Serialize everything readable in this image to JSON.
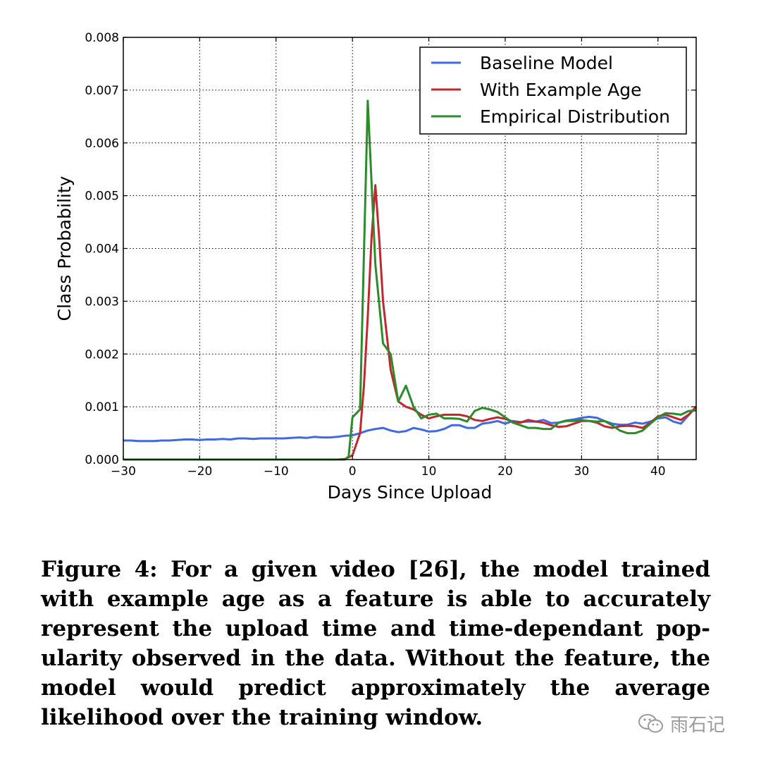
{
  "chart_data": {
    "type": "line",
    "title": "",
    "xlabel": "Days Since Upload",
    "ylabel": "Class Probability",
    "xlim": [
      -30,
      45
    ],
    "ylim": [
      0,
      0.008
    ],
    "x_ticks": [
      -30,
      -20,
      -10,
      0,
      10,
      20,
      30,
      40
    ],
    "x_tick_labels": [
      "−30",
      "−20",
      "−10",
      "0",
      "10",
      "20",
      "30",
      "40"
    ],
    "y_ticks": [
      0,
      0.001,
      0.002,
      0.003,
      0.004,
      0.005,
      0.006,
      0.007,
      0.008
    ],
    "y_tick_labels": [
      "0.000",
      "0.001",
      "0.002",
      "0.003",
      "0.004",
      "0.005",
      "0.006",
      "0.007",
      "0.008"
    ],
    "grid": true,
    "legend_position": "top-right",
    "series": [
      {
        "name": "Baseline Model",
        "color": "#4169e1",
        "points": [
          [
            -30,
            0.00036
          ],
          [
            -29,
            0.00036
          ],
          [
            -28,
            0.00035
          ],
          [
            -27,
            0.00035
          ],
          [
            -26,
            0.00035
          ],
          [
            -25,
            0.00036
          ],
          [
            -24,
            0.00036
          ],
          [
            -23,
            0.00037
          ],
          [
            -22,
            0.00038
          ],
          [
            -21,
            0.00038
          ],
          [
            -20,
            0.00037
          ],
          [
            -19,
            0.00038
          ],
          [
            -18,
            0.00038
          ],
          [
            -17,
            0.00039
          ],
          [
            -16,
            0.00038
          ],
          [
            -15,
            0.0004
          ],
          [
            -14,
            0.0004
          ],
          [
            -13,
            0.00039
          ],
          [
            -12,
            0.0004
          ],
          [
            -11,
            0.0004
          ],
          [
            -10,
            0.0004
          ],
          [
            -9,
            0.0004
          ],
          [
            -8,
            0.00041
          ],
          [
            -7,
            0.00042
          ],
          [
            -6,
            0.00041
          ],
          [
            -5,
            0.00043
          ],
          [
            -4,
            0.00042
          ],
          [
            -3,
            0.00042
          ],
          [
            -2,
            0.00043
          ],
          [
            -1,
            0.00045
          ],
          [
            0,
            0.00046
          ],
          [
            1,
            0.0005
          ],
          [
            2,
            0.00055
          ],
          [
            3,
            0.00058
          ],
          [
            4,
            0.0006
          ],
          [
            5,
            0.00055
          ],
          [
            6,
            0.00052
          ],
          [
            7,
            0.00054
          ],
          [
            8,
            0.0006
          ],
          [
            9,
            0.00057
          ],
          [
            10,
            0.00053
          ],
          [
            11,
            0.00054
          ],
          [
            12,
            0.00058
          ],
          [
            13,
            0.00065
          ],
          [
            14,
            0.00065
          ],
          [
            15,
            0.0006
          ],
          [
            16,
            0.0006
          ],
          [
            17,
            0.00068
          ],
          [
            18,
            0.0007
          ],
          [
            19,
            0.00073
          ],
          [
            20,
            0.00068
          ],
          [
            21,
            0.00073
          ],
          [
            22,
            0.00071
          ],
          [
            23,
            0.00072
          ],
          [
            24,
            0.00072
          ],
          [
            25,
            0.00075
          ],
          [
            26,
            0.00069
          ],
          [
            27,
            0.0007
          ],
          [
            28,
            0.00074
          ],
          [
            29,
            0.00076
          ],
          [
            30,
            0.00079
          ],
          [
            31,
            0.00081
          ],
          [
            32,
            0.00079
          ],
          [
            33,
            0.00073
          ],
          [
            34,
            0.00068
          ],
          [
            35,
            0.00066
          ],
          [
            36,
            0.00066
          ],
          [
            37,
            0.0007
          ],
          [
            38,
            0.00068
          ],
          [
            39,
            0.00072
          ],
          [
            40,
            0.00078
          ],
          [
            41,
            0.0008
          ],
          [
            42,
            0.00072
          ],
          [
            43,
            0.00068
          ],
          [
            44,
            0.00084
          ],
          [
            45,
            0.001
          ]
        ]
      },
      {
        "name": "With Example Age",
        "color": "#c0282d",
        "points": [
          [
            -30,
            0.0
          ],
          [
            -25,
            0.0
          ],
          [
            -20,
            0.0
          ],
          [
            -15,
            0.0
          ],
          [
            -10,
            0.0
          ],
          [
            -5,
            0.0
          ],
          [
            -2,
            0.0
          ],
          [
            -1,
            1e-05
          ],
          [
            0,
            8e-05
          ],
          [
            1,
            0.0005
          ],
          [
            1.5,
            0.0014
          ],
          [
            2,
            0.0027
          ],
          [
            2.5,
            0.0042
          ],
          [
            3,
            0.0052
          ],
          [
            3.5,
            0.0042
          ],
          [
            4,
            0.003
          ],
          [
            5,
            0.0017
          ],
          [
            6,
            0.0011
          ],
          [
            7,
            0.001
          ],
          [
            8,
            0.00095
          ],
          [
            9,
            0.00085
          ],
          [
            10,
            0.00078
          ],
          [
            11,
            0.00082
          ],
          [
            12,
            0.00085
          ],
          [
            13,
            0.00085
          ],
          [
            14,
            0.00085
          ],
          [
            15,
            0.00082
          ],
          [
            16,
            0.00075
          ],
          [
            17,
            0.00073
          ],
          [
            18,
            0.00077
          ],
          [
            19,
            0.0008
          ],
          [
            20,
            0.00077
          ],
          [
            21,
            0.00072
          ],
          [
            22,
            0.0007
          ],
          [
            23,
            0.00075
          ],
          [
            24,
            0.00072
          ],
          [
            25,
            0.0007
          ],
          [
            26,
            0.00065
          ],
          [
            27,
            0.00062
          ],
          [
            28,
            0.00063
          ],
          [
            29,
            0.00068
          ],
          [
            30,
            0.00073
          ],
          [
            31,
            0.00073
          ],
          [
            32,
            0.0007
          ],
          [
            33,
            0.00063
          ],
          [
            34,
            0.0006
          ],
          [
            35,
            0.00063
          ],
          [
            36,
            0.00064
          ],
          [
            37,
            0.00063
          ],
          [
            38,
            0.0006
          ],
          [
            39,
            0.0007
          ],
          [
            40,
            0.00082
          ],
          [
            41,
            0.00085
          ],
          [
            42,
            0.0008
          ],
          [
            43,
            0.00075
          ],
          [
            44,
            0.00085
          ],
          [
            45,
            0.001
          ]
        ]
      },
      {
        "name": "Empirical Distribution",
        "color": "#2a8c2a",
        "points": [
          [
            -30,
            0.0
          ],
          [
            -25,
            0.0
          ],
          [
            -20,
            0.0
          ],
          [
            -15,
            0.0
          ],
          [
            -10,
            0.0
          ],
          [
            -5,
            0.0
          ],
          [
            -1,
            0.0
          ],
          [
            -0.5,
            6e-05
          ],
          [
            0,
            0.0008
          ],
          [
            1,
            0.00095
          ],
          [
            2,
            0.0068
          ],
          [
            3,
            0.0037
          ],
          [
            4,
            0.0022
          ],
          [
            5,
            0.002
          ],
          [
            6,
            0.0011
          ],
          [
            7,
            0.0014
          ],
          [
            8,
            0.001
          ],
          [
            9,
            0.00078
          ],
          [
            10,
            0.00085
          ],
          [
            11,
            0.00087
          ],
          [
            12,
            0.00078
          ],
          [
            13,
            0.00078
          ],
          [
            14,
            0.00077
          ],
          [
            15,
            0.00072
          ],
          [
            16,
            0.00092
          ],
          [
            17,
            0.00098
          ],
          [
            18,
            0.00095
          ],
          [
            19,
            0.0009
          ],
          [
            20,
            0.0008
          ],
          [
            21,
            0.0007
          ],
          [
            22,
            0.00065
          ],
          [
            23,
            0.0006
          ],
          [
            24,
            0.0006
          ],
          [
            25,
            0.00058
          ],
          [
            26,
            0.00058
          ],
          [
            27,
            0.0007
          ],
          [
            28,
            0.00073
          ],
          [
            29,
            0.00073
          ],
          [
            30,
            0.00075
          ],
          [
            31,
            0.00073
          ],
          [
            32,
            0.00072
          ],
          [
            33,
            0.00073
          ],
          [
            34,
            0.00065
          ],
          [
            35,
            0.00055
          ],
          [
            36,
            0.0005
          ],
          [
            37,
            0.0005
          ],
          [
            38,
            0.00055
          ],
          [
            39,
            0.00068
          ],
          [
            40,
            0.0008
          ],
          [
            41,
            0.00088
          ],
          [
            42,
            0.00087
          ],
          [
            43,
            0.00085
          ],
          [
            44,
            0.00092
          ],
          [
            45,
            0.00093
          ]
        ]
      }
    ]
  },
  "caption": {
    "text": "Figure 4: For a given video [26], the model trained with example age as a feature is able to accurately represent the upload time and time-dependant pop-ularity observed in the data. Without the feature, the model would predict approximately the average likelihood over the training window."
  },
  "watermark": {
    "icon": "wechat-icon",
    "text": "雨石记",
    "color": "#9a9a9a"
  }
}
